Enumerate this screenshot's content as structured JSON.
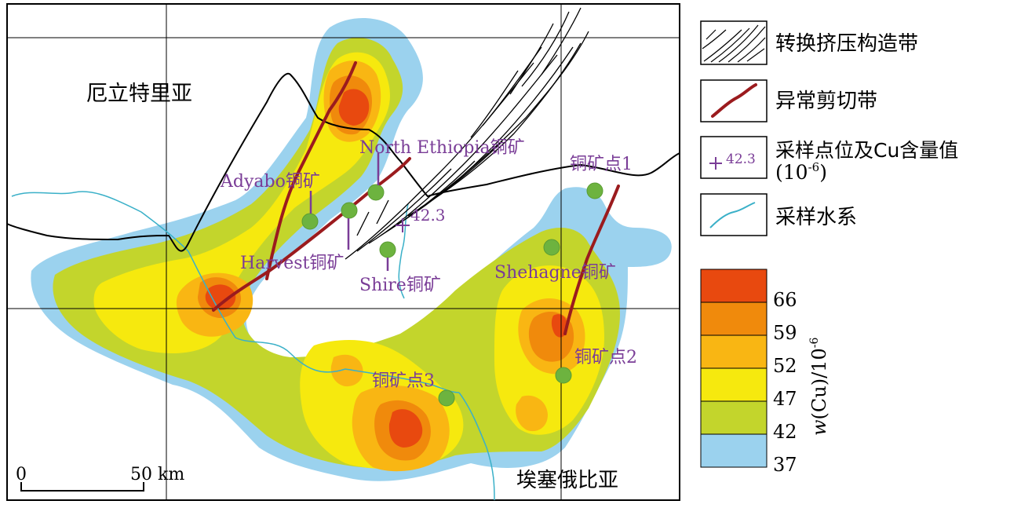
{
  "map": {
    "country_north": "厄立特里亚",
    "country_south": "埃塞俄比亚",
    "scale": {
      "zero": "0",
      "distance": "50 km"
    }
  },
  "mines": [
    {
      "name": "Adyabo铜矿"
    },
    {
      "name": "North Ethiopia铜矿"
    },
    {
      "name": "Harvest铜矿"
    },
    {
      "name": "Shire铜矿"
    },
    {
      "name": "Shehagne铜矿"
    },
    {
      "name": "铜矿点1"
    },
    {
      "name": "铜矿点2"
    },
    {
      "name": "铜矿点3"
    }
  ],
  "sample_value": "42.3",
  "legend": {
    "items": [
      {
        "label": "转换挤压构造带",
        "icon": "compression-zone-icon"
      },
      {
        "label": "异常剪切带",
        "icon": "shear-zone-icon"
      },
      {
        "label": "采样点位及Cu含量值",
        "label2": "(10",
        "sup": "-6",
        "label2_end": ")",
        "sample": "42.3",
        "icon": "sample-point-icon"
      },
      {
        "label": "采样水系",
        "icon": "drainage-icon"
      }
    ],
    "colorbar": {
      "title_var": "w",
      "title_rest": "(Cu)/10",
      "title_sup": "-6",
      "classes": [
        {
          "value": "66",
          "color": "#e8490f"
        },
        {
          "value": "59",
          "color": "#f08a0c"
        },
        {
          "value": "52",
          "color": "#f9b613"
        },
        {
          "value": "47",
          "color": "#f6e90e"
        },
        {
          "value": "42",
          "color": "#c3d52c"
        },
        {
          "value": "37",
          "color": "#9bd2ee"
        }
      ]
    }
  },
  "colors": {
    "shear": "#9b1b1e",
    "sample_site": "#6db33f",
    "mine_label": "#7a3d97",
    "drainage": "#3ab0c8",
    "border": "#000000"
  }
}
